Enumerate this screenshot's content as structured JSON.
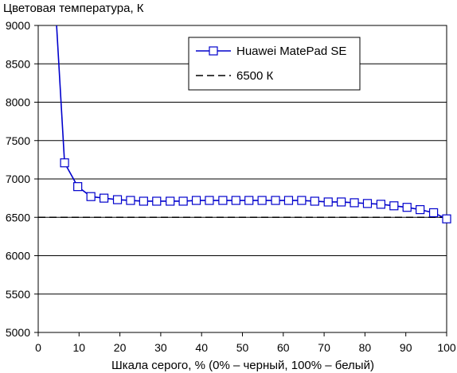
{
  "chart_data": {
    "type": "line",
    "title": "",
    "ylabel": "Цветовая температура, К",
    "xlabel": "Шкала серого, % (0% – черный, 100% – белый)",
    "xlim": [
      0,
      100
    ],
    "ylim": [
      5000,
      9000
    ],
    "x_ticks": [
      "0",
      "10",
      "20",
      "30",
      "40",
      "50",
      "60",
      "70",
      "80",
      "90",
      "100"
    ],
    "y_ticks": [
      "5000",
      "5500",
      "6000",
      "6500",
      "7000",
      "7500",
      "8000",
      "8500",
      "9000"
    ],
    "grid": "horizontal",
    "legend_position": "top-right",
    "series": [
      {
        "name": "Huawei MatePad SE",
        "color": "#0000CC",
        "marker": "square",
        "x": [
          4.5,
          6.45,
          9.68,
          12.9,
          16.1,
          19.4,
          22.6,
          25.8,
          29.0,
          32.3,
          35.5,
          38.7,
          41.9,
          45.2,
          48.4,
          51.6,
          54.8,
          58.1,
          61.3,
          64.5,
          67.7,
          71.0,
          74.2,
          77.4,
          80.6,
          83.9,
          87.1,
          90.3,
          93.5,
          96.8,
          100
        ],
        "values": [
          9000,
          7210,
          6900,
          6770,
          6750,
          6730,
          6720,
          6710,
          6710,
          6710,
          6710,
          6720,
          6720,
          6720,
          6720,
          6720,
          6720,
          6720,
          6720,
          6720,
          6710,
          6700,
          6700,
          6690,
          6680,
          6670,
          6650,
          6630,
          6600,
          6560,
          6480
        ]
      },
      {
        "name": "6500 К",
        "color": "#000000",
        "style": "dashed",
        "x": [
          0,
          100
        ],
        "values": [
          6500,
          6500
        ]
      }
    ]
  }
}
